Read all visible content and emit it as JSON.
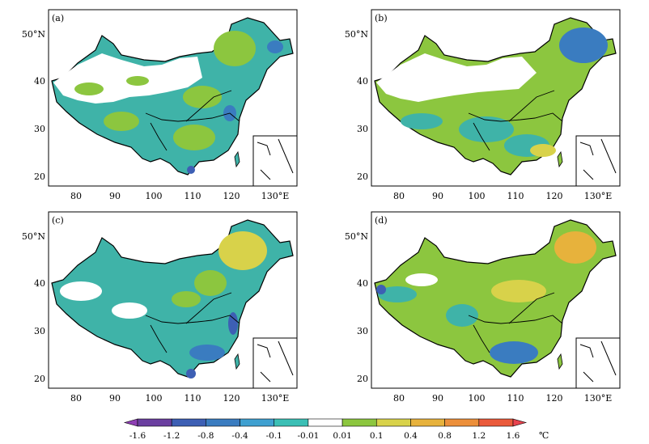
{
  "panels": [
    {
      "label": "(a)"
    },
    {
      "label": "(b)"
    },
    {
      "label": "(c)"
    },
    {
      "label": "(d)"
    }
  ],
  "axes": {
    "x_ticks": [
      "80",
      "90",
      "100",
      "110",
      "120",
      "130°E"
    ],
    "y_ticks": [
      "50°N",
      "40",
      "30",
      "20"
    ]
  },
  "colorbar": {
    "tick_labels": [
      "-1.6",
      "-1.2",
      "-0.8",
      "-0.4",
      "-0.1",
      "-0.01",
      "0.01",
      "0.1",
      "0.4",
      "0.8",
      "1.2",
      "1.6"
    ],
    "unit": "℃",
    "colors": [
      "#6b3fa0",
      "#3d5fb4",
      "#3a7cc0",
      "#3fa0d0",
      "#3bbfb5",
      "#ffffff",
      "#8cc63f",
      "#d8d24a",
      "#e7b23c",
      "#ec8f3a",
      "#ea5a3b"
    ]
  }
}
